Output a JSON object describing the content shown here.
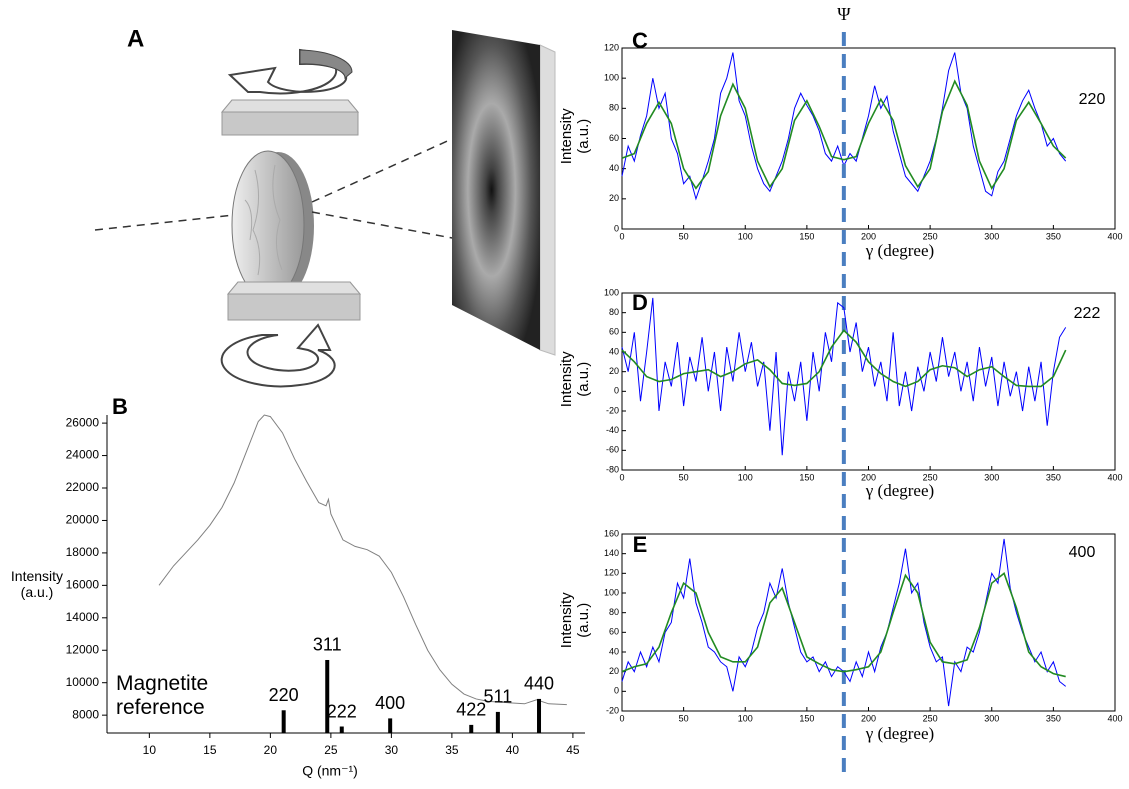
{
  "schematic": {
    "label": "A"
  },
  "chart_data": [
    {
      "type": "line",
      "panel": "B",
      "x_label": "Q (nm⁻¹)",
      "y_label": "Intensity (a.u.)",
      "xlim": [
        6.5,
        46
      ],
      "ylim": [
        6900,
        26500
      ],
      "xticks": [
        10,
        15,
        20,
        25,
        30,
        35,
        40,
        45
      ],
      "yticks": [
        8000,
        10000,
        12000,
        14000,
        16000,
        18000,
        20000,
        22000,
        24000,
        26000
      ],
      "series": [
        {
          "color": "#808080",
          "x": [
            10.8,
            12,
            13,
            14,
            15,
            16,
            17,
            18,
            19,
            19.5,
            20,
            21,
            22,
            23,
            24,
            24.6,
            24.8,
            25,
            26,
            27,
            28,
            29,
            30,
            31,
            32,
            33,
            34,
            35,
            36,
            37,
            38,
            39,
            40,
            41,
            42,
            43,
            44.5
          ],
          "values": [
            16000,
            17200,
            18000,
            18800,
            19700,
            20800,
            22300,
            24200,
            26100,
            26500,
            26400,
            25400,
            23800,
            22400,
            21100,
            20900,
            21300,
            20400,
            18800,
            18400,
            18200,
            17800,
            16800,
            15300,
            13600,
            12000,
            10800,
            9900,
            9300,
            9000,
            8850,
            8800,
            8750,
            8700,
            8950,
            8700,
            8650
          ]
        }
      ],
      "reference": {
        "name": "Magnetite reference",
        "color": "#000000",
        "x": [
          21.1,
          24.7,
          25.9,
          29.9,
          36.6,
          38.8,
          42.2
        ],
        "values": [
          8300,
          11400,
          7300,
          7800,
          7400,
          8200,
          9000
        ],
        "labels": [
          "220",
          "311",
          "222",
          "400",
          "422",
          "511",
          "440"
        ]
      }
    },
    {
      "type": "line",
      "panel": "C",
      "annotation": "220",
      "x_label": "γ  (degree)",
      "y_label": "Intensity (a.u.)",
      "marker": {
        "label": "Ψ",
        "x": 180
      },
      "xlim": [
        0,
        400
      ],
      "ylim": [
        0,
        120
      ],
      "xticks": [
        0,
        50,
        100,
        150,
        200,
        250,
        300,
        350,
        400
      ],
      "yticks": [
        0,
        20,
        40,
        60,
        80,
        100,
        120
      ],
      "series": [
        {
          "color": "#0000ff",
          "x": [
            0,
            5,
            10,
            15,
            20,
            25,
            30,
            35,
            40,
            45,
            50,
            55,
            60,
            65,
            70,
            75,
            80,
            85,
            90,
            95,
            100,
            105,
            110,
            115,
            120,
            125,
            130,
            135,
            140,
            145,
            150,
            155,
            160,
            165,
            170,
            175,
            180,
            185,
            190,
            195,
            200,
            205,
            210,
            215,
            220,
            225,
            230,
            235,
            240,
            245,
            250,
            255,
            260,
            265,
            270,
            275,
            280,
            285,
            290,
            295,
            300,
            305,
            310,
            315,
            320,
            325,
            330,
            335,
            340,
            345,
            350,
            355,
            360
          ],
          "values": [
            35,
            55,
            45,
            62,
            75,
            100,
            80,
            90,
            60,
            50,
            30,
            35,
            20,
            32,
            45,
            60,
            90,
            100,
            117,
            85,
            75,
            55,
            40,
            30,
            25,
            35,
            45,
            60,
            80,
            90,
            82,
            75,
            65,
            50,
            45,
            55,
            42,
            50,
            45,
            60,
            75,
            95,
            80,
            88,
            65,
            50,
            35,
            30,
            25,
            35,
            45,
            60,
            80,
            105,
            117,
            90,
            80,
            55,
            40,
            25,
            22,
            38,
            45,
            60,
            75,
            85,
            92,
            80,
            70,
            55,
            60,
            50,
            45
          ]
        },
        {
          "color": "#228b22",
          "x": [
            0,
            10,
            20,
            30,
            40,
            50,
            60,
            70,
            80,
            90,
            100,
            110,
            120,
            130,
            140,
            150,
            160,
            170,
            180,
            190,
            200,
            210,
            220,
            230,
            240,
            250,
            260,
            270,
            280,
            290,
            300,
            310,
            320,
            330,
            340,
            350,
            360
          ],
          "values": [
            47,
            50,
            70,
            84,
            70,
            40,
            27,
            38,
            75,
            96,
            80,
            45,
            28,
            40,
            72,
            85,
            68,
            48,
            46,
            48,
            70,
            86,
            72,
            42,
            28,
            40,
            78,
            98,
            82,
            45,
            27,
            40,
            72,
            84,
            70,
            55,
            47
          ]
        }
      ]
    },
    {
      "type": "line",
      "panel": "D",
      "annotation": "222",
      "x_label": "γ  (degree)",
      "y_label": "Intensity (a.u.)",
      "xlim": [
        0,
        400
      ],
      "ylim": [
        -80,
        100
      ],
      "xticks": [
        0,
        50,
        100,
        150,
        200,
        250,
        300,
        350,
        400
      ],
      "yticks": [
        -80,
        -60,
        -40,
        -20,
        0,
        20,
        40,
        60,
        80,
        100
      ],
      "series": [
        {
          "color": "#0000ff",
          "x": [
            0,
            5,
            10,
            15,
            20,
            25,
            30,
            35,
            40,
            45,
            50,
            55,
            60,
            65,
            70,
            75,
            80,
            85,
            90,
            95,
            100,
            105,
            110,
            115,
            120,
            125,
            130,
            135,
            140,
            145,
            150,
            155,
            160,
            165,
            170,
            175,
            180,
            185,
            190,
            195,
            200,
            205,
            210,
            215,
            220,
            225,
            230,
            235,
            240,
            245,
            250,
            255,
            260,
            265,
            270,
            275,
            280,
            285,
            290,
            295,
            300,
            305,
            310,
            315,
            320,
            325,
            330,
            335,
            340,
            345,
            350,
            355,
            360
          ],
          "values": [
            45,
            20,
            60,
            -10,
            40,
            95,
            -20,
            30,
            5,
            50,
            -15,
            35,
            10,
            55,
            0,
            40,
            -20,
            45,
            10,
            60,
            20,
            50,
            5,
            30,
            -40,
            40,
            -65,
            20,
            -10,
            30,
            -30,
            40,
            0,
            60,
            30,
            90,
            85,
            40,
            70,
            20,
            45,
            5,
            30,
            -10,
            60,
            -15,
            20,
            -20,
            25,
            0,
            40,
            10,
            55,
            15,
            40,
            0,
            30,
            -10,
            45,
            5,
            35,
            -15,
            30,
            -5,
            20,
            -20,
            25,
            -10,
            30,
            -35,
            20,
            55,
            65
          ]
        },
        {
          "color": "#228b22",
          "x": [
            0,
            10,
            20,
            30,
            40,
            50,
            60,
            70,
            80,
            90,
            100,
            110,
            120,
            130,
            140,
            150,
            160,
            170,
            180,
            190,
            200,
            210,
            220,
            230,
            240,
            250,
            260,
            270,
            280,
            290,
            300,
            310,
            320,
            330,
            340,
            350,
            360
          ],
          "values": [
            42,
            30,
            15,
            10,
            12,
            18,
            20,
            22,
            15,
            20,
            28,
            32,
            22,
            8,
            6,
            8,
            20,
            45,
            62,
            50,
            30,
            18,
            10,
            5,
            10,
            22,
            26,
            24,
            15,
            22,
            25,
            15,
            6,
            5,
            5,
            15,
            42
          ]
        }
      ]
    },
    {
      "type": "line",
      "panel": "E",
      "annotation": "400",
      "x_label": "γ  (degree)",
      "y_label": "Intensity (a.u.)",
      "xlim": [
        0,
        400
      ],
      "ylim": [
        -20,
        160
      ],
      "xticks": [
        0,
        50,
        100,
        150,
        200,
        250,
        300,
        350,
        400
      ],
      "yticks": [
        -20,
        0,
        20,
        40,
        60,
        80,
        100,
        120,
        140,
        160
      ],
      "series": [
        {
          "color": "#0000ff",
          "x": [
            0,
            5,
            10,
            15,
            20,
            25,
            30,
            35,
            40,
            45,
            50,
            55,
            60,
            65,
            70,
            75,
            80,
            85,
            90,
            95,
            100,
            105,
            110,
            115,
            120,
            125,
            130,
            135,
            140,
            145,
            150,
            155,
            160,
            165,
            170,
            175,
            180,
            185,
            190,
            195,
            200,
            205,
            210,
            215,
            220,
            225,
            230,
            235,
            240,
            245,
            250,
            255,
            260,
            265,
            270,
            275,
            280,
            285,
            290,
            295,
            300,
            305,
            310,
            315,
            320,
            325,
            330,
            335,
            340,
            345,
            350,
            355,
            360
          ],
          "values": [
            10,
            30,
            20,
            40,
            25,
            45,
            30,
            60,
            70,
            110,
            95,
            135,
            90,
            70,
            45,
            40,
            30,
            25,
            0,
            35,
            25,
            40,
            65,
            80,
            110,
            95,
            125,
            90,
            65,
            40,
            30,
            35,
            20,
            30,
            15,
            25,
            20,
            10,
            30,
            15,
            40,
            20,
            45,
            60,
            85,
            110,
            145,
            100,
            110,
            70,
            45,
            30,
            35,
            -15,
            30,
            20,
            45,
            40,
            60,
            90,
            120,
            110,
            155,
            105,
            80,
            60,
            45,
            30,
            40,
            20,
            30,
            10,
            5
          ]
        },
        {
          "color": "#228b22",
          "x": [
            0,
            10,
            20,
            30,
            40,
            50,
            60,
            70,
            80,
            90,
            100,
            110,
            120,
            130,
            140,
            150,
            160,
            170,
            180,
            190,
            200,
            210,
            220,
            230,
            240,
            250,
            260,
            270,
            280,
            290,
            300,
            310,
            320,
            330,
            340,
            350,
            360
          ],
          "values": [
            20,
            25,
            28,
            45,
            80,
            110,
            100,
            60,
            35,
            30,
            30,
            45,
            90,
            105,
            70,
            35,
            28,
            22,
            20,
            22,
            25,
            40,
            80,
            118,
            100,
            50,
            30,
            28,
            32,
            65,
            110,
            120,
            85,
            40,
            25,
            18,
            15
          ]
        }
      ]
    }
  ]
}
